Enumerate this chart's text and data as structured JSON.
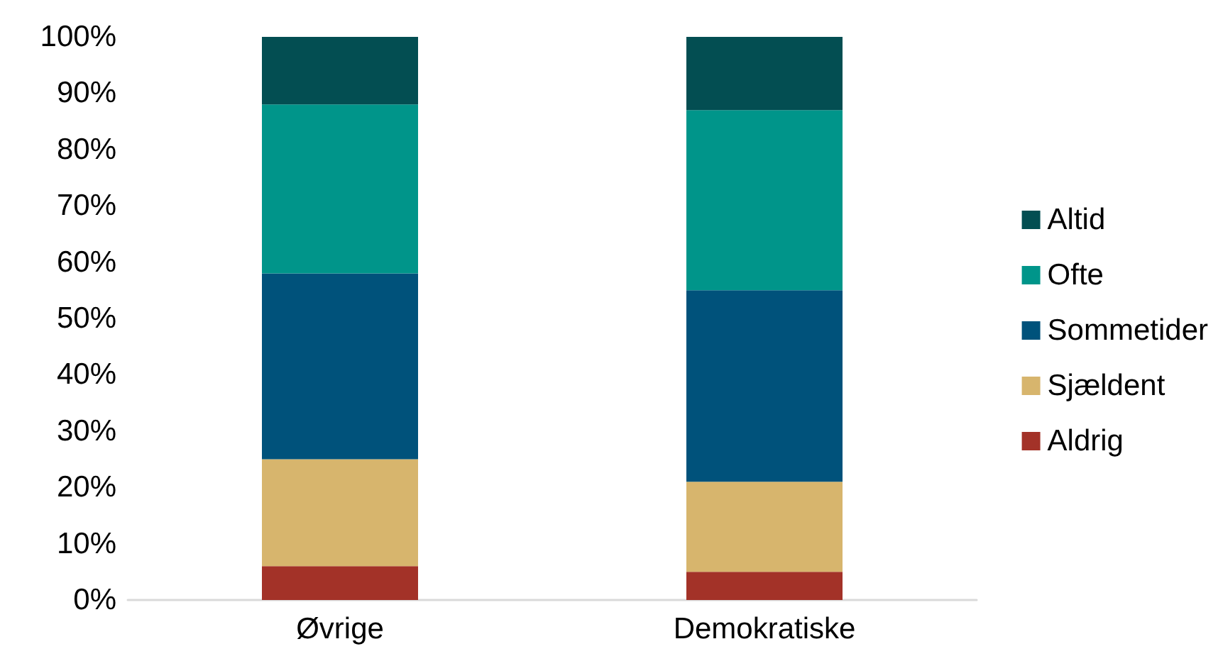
{
  "chart_data": {
    "type": "bar",
    "stacked": true,
    "categories": [
      "Øvrige",
      "Demokratiske"
    ],
    "series": [
      {
        "name": "Aldrig",
        "color": "#a33228",
        "values": [
          6,
          5
        ]
      },
      {
        "name": "Sjældent",
        "color": "#d7b56d",
        "values": [
          19,
          16
        ]
      },
      {
        "name": "Sommetider",
        "color": "#00527b",
        "values": [
          33,
          34
        ]
      },
      {
        "name": "Ofte",
        "color": "#00958a",
        "values": [
          30,
          32
        ]
      },
      {
        "name": "Altid",
        "color": "#034e52",
        "values": [
          12,
          13
        ]
      }
    ],
    "ylim": [
      0,
      100
    ],
    "yticks": [
      {
        "value": 0,
        "label": "0%"
      },
      {
        "value": 10,
        "label": "10%"
      },
      {
        "value": 20,
        "label": "20%"
      },
      {
        "value": 30,
        "label": "30%"
      },
      {
        "value": 40,
        "label": "40%"
      },
      {
        "value": 50,
        "label": "50%"
      },
      {
        "value": 60,
        "label": "60%"
      },
      {
        "value": 70,
        "label": "70%"
      },
      {
        "value": 80,
        "label": "80%"
      },
      {
        "value": 90,
        "label": "90%"
      },
      {
        "value": 100,
        "label": "100%"
      }
    ],
    "grid": false,
    "legend": "right"
  }
}
